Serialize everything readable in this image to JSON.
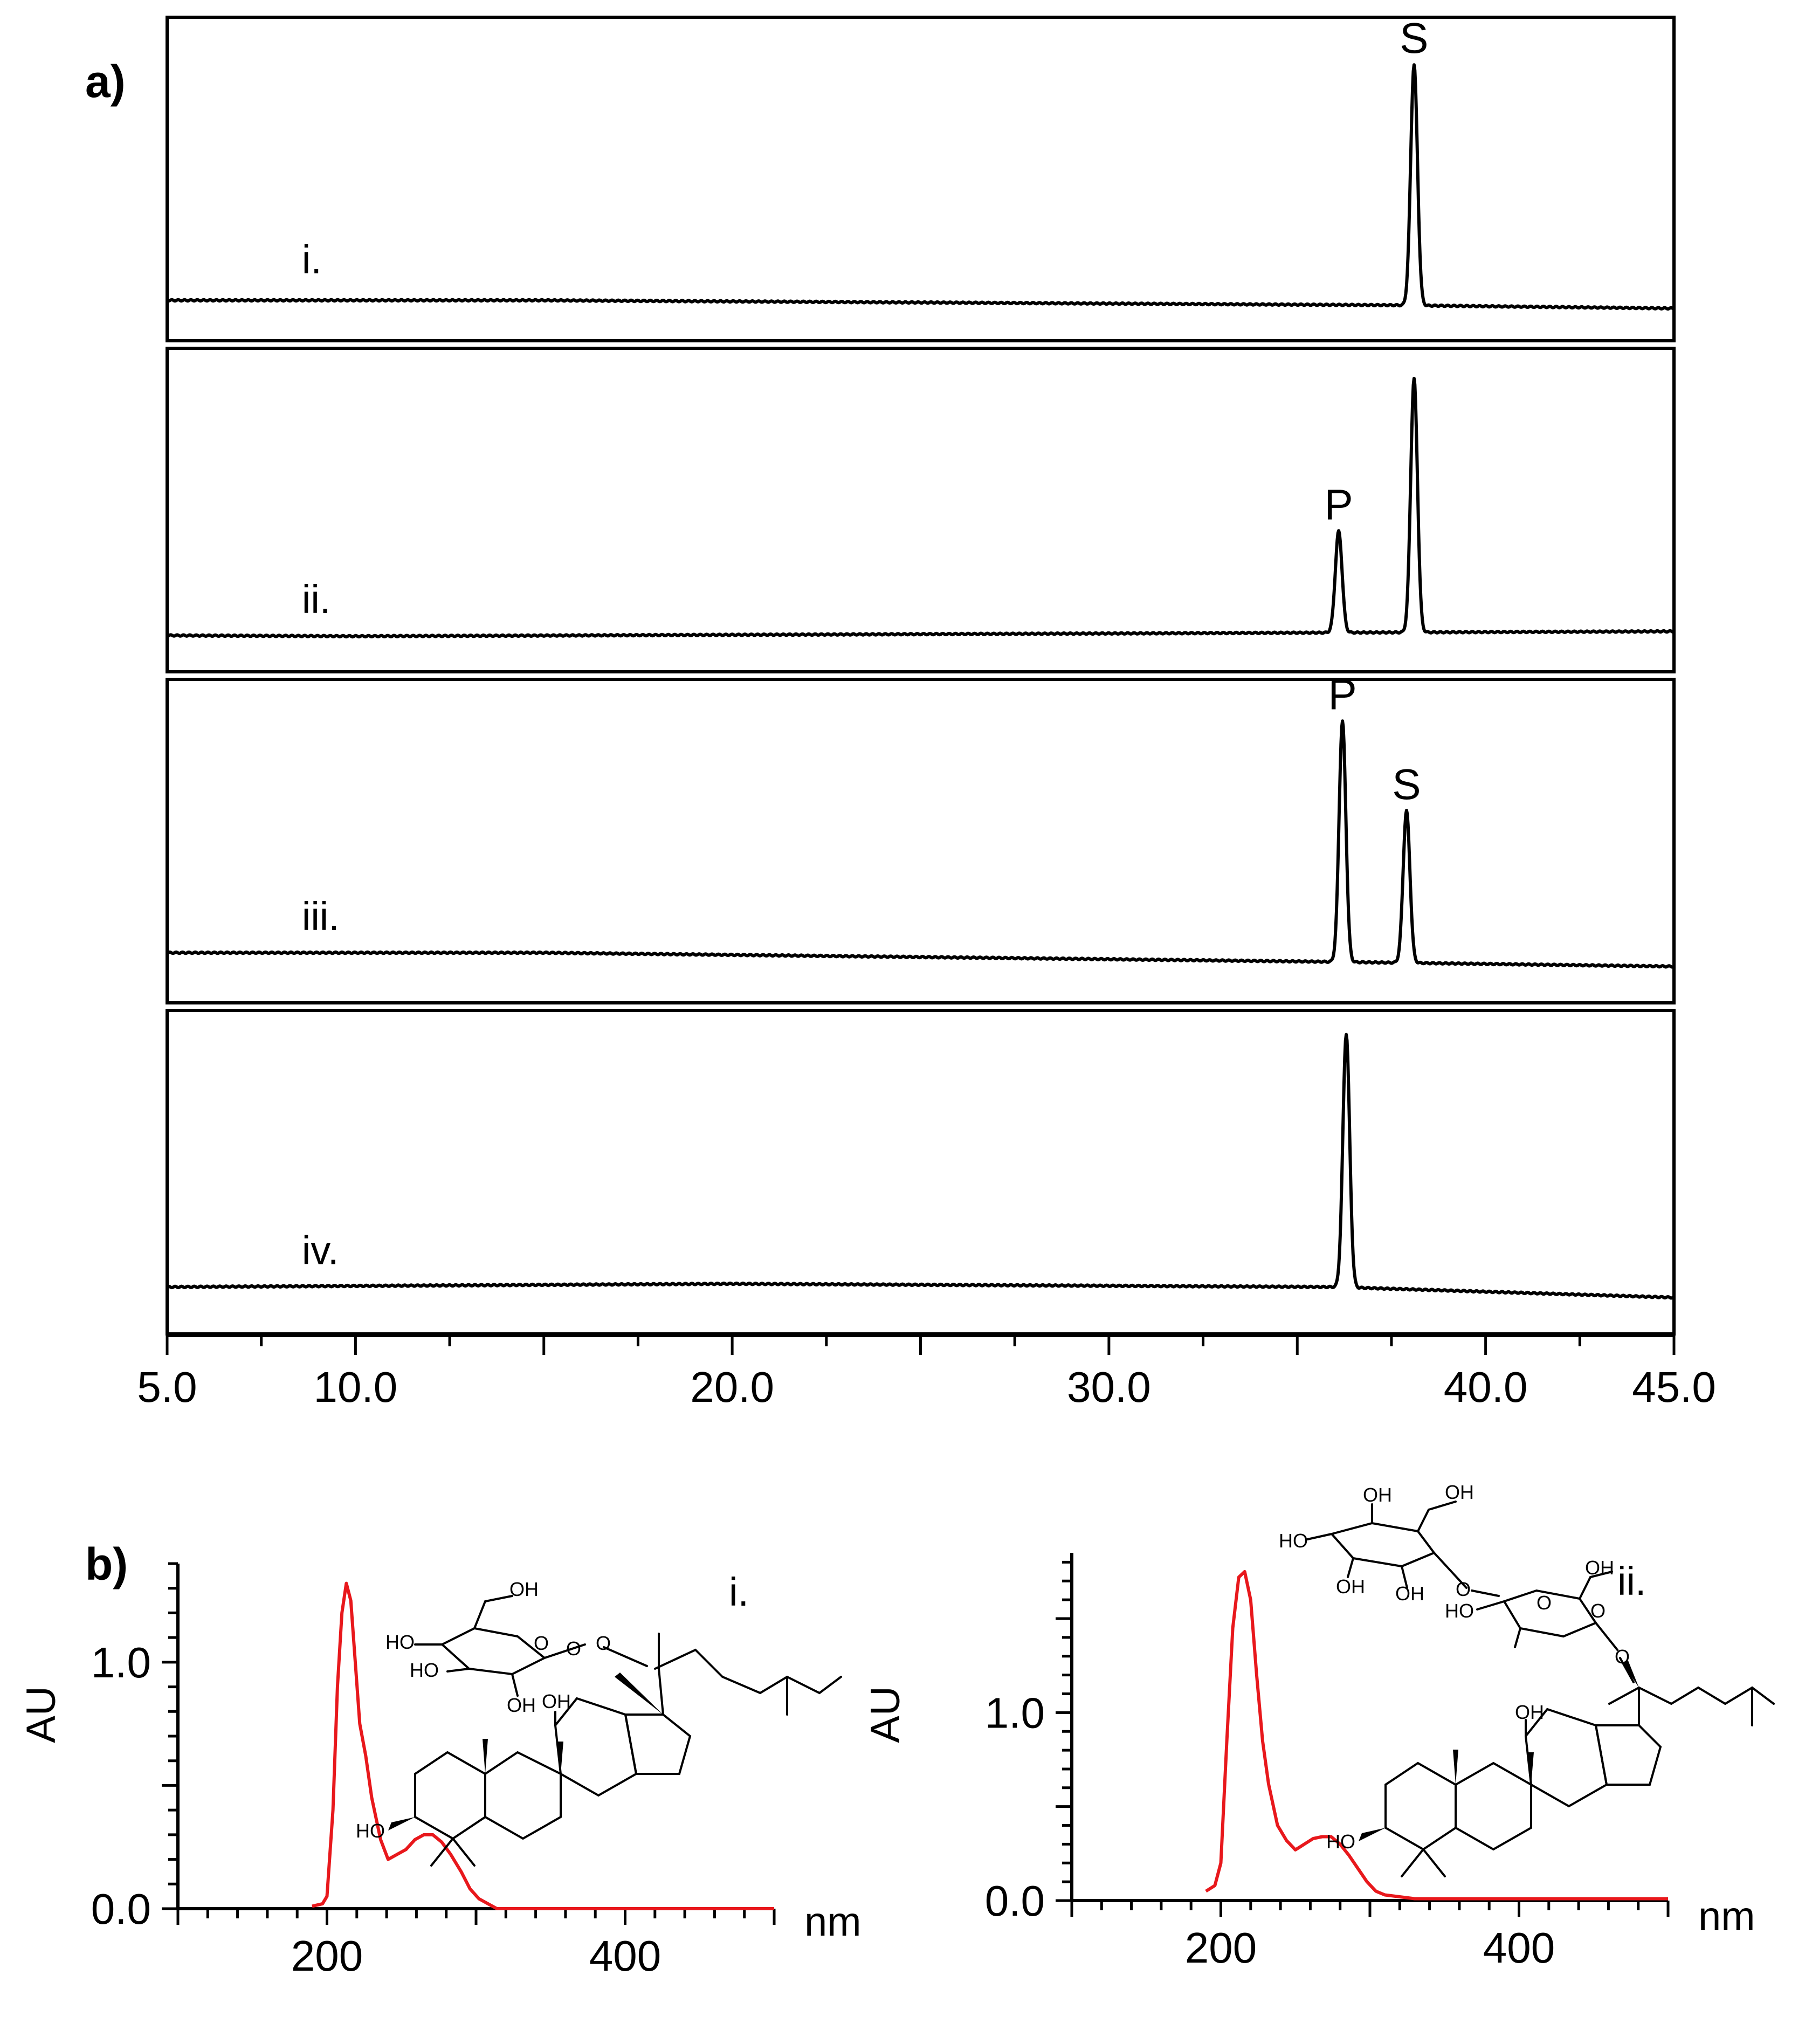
{
  "panel_a": {
    "label": "a)",
    "x_axis": {
      "tick_labels": [
        {
          "value": 5,
          "text": "5.0"
        },
        {
          "value": 10,
          "text": "10.0"
        },
        {
          "value": 20,
          "text": "20.0"
        },
        {
          "value": 30,
          "text": "30.0"
        },
        {
          "value": 40,
          "text": "40.0"
        },
        {
          "value": 45,
          "text": "45.0"
        }
      ]
    }
  },
  "panel_b": {
    "label": "b)",
    "y_label": "AU",
    "x_unit": "nm",
    "spectrum_i": {
      "label": "i.",
      "y_ticks": [
        {
          "value": 0.0,
          "text": "0.0"
        },
        {
          "value": 1.0,
          "text": "1.0"
        }
      ],
      "x_ticks": [
        {
          "value": 200,
          "text": "200"
        },
        {
          "value": 400,
          "text": "400"
        }
      ],
      "structure_labels": [
        "OH",
        "HO",
        "HO",
        "OH",
        "O",
        "O",
        "O",
        "OH",
        "HO"
      ]
    },
    "spectrum_ii": {
      "label": "ii.",
      "y_ticks": [
        {
          "value": 0.0,
          "text": "0.0"
        },
        {
          "value": 1.0,
          "text": "1.0"
        }
      ],
      "x_ticks": [
        {
          "value": 200,
          "text": "200"
        },
        {
          "value": 400,
          "text": "400"
        }
      ],
      "structure_labels": [
        "OH",
        "OH",
        "HO",
        "OH",
        "OH",
        "O",
        "O",
        "OH",
        "HO",
        "O",
        "O",
        "OH",
        "HO"
      ]
    }
  },
  "chart_data": [
    {
      "type": "line",
      "panel": "a",
      "xlim": [
        5.0,
        45.0
      ],
      "xlabel": "",
      "ylabel": "",
      "grid": false,
      "series": [
        {
          "name": "i.",
          "baseline": [
            [
              5,
              0.1
            ],
            [
              15,
              0.1
            ],
            [
              37.5,
              0.04
            ],
            [
              45,
              0.0
            ]
          ],
          "peaks": [
            {
              "x": 38.1,
              "height": 0.95,
              "label": "S"
            }
          ]
        },
        {
          "name": "ii.",
          "baseline": [
            [
              5,
              0.05
            ],
            [
              10,
              0.04
            ],
            [
              45,
              0.1
            ]
          ],
          "peaks": [
            {
              "x": 36.1,
              "height": 0.4,
              "label": "P"
            },
            {
              "x": 38.1,
              "height": 1.0,
              "label": ""
            }
          ]
        },
        {
          "name": "iii.",
          "baseline": [
            [
              5,
              0.22
            ],
            [
              15,
              0.22
            ],
            [
              35.5,
              0.11
            ],
            [
              45,
              0.05
            ]
          ],
          "peaks": [
            {
              "x": 36.2,
              "height": 0.95,
              "label": "P"
            },
            {
              "x": 37.9,
              "height": 0.6,
              "label": "S"
            }
          ]
        },
        {
          "name": "iv.",
          "baseline": [
            [
              5,
              0.18
            ],
            [
              20,
              0.22
            ],
            [
              36,
              0.18
            ],
            [
              45,
              0.05
            ]
          ],
          "peaks": [
            {
              "x": 36.3,
              "height": 1.0,
              "label": ""
            }
          ]
        }
      ]
    },
    {
      "type": "line",
      "panel": "b-i",
      "xlim": [
        100,
        500
      ],
      "ylim": [
        0.0,
        1.4
      ],
      "xlabel": "nm",
      "ylabel": "AU",
      "series": [
        {
          "name": "i.",
          "x": [
            190,
            197,
            200,
            204,
            207,
            210,
            213,
            216,
            219,
            222,
            226,
            230,
            236,
            241,
            247,
            253,
            259,
            265,
            271,
            277,
            283,
            290,
            296,
            302,
            308,
            314,
            330,
            400,
            500
          ],
          "y": [
            0.01,
            0.02,
            0.05,
            0.4,
            0.9,
            1.2,
            1.32,
            1.25,
            1.0,
            0.75,
            0.62,
            0.45,
            0.28,
            0.2,
            0.22,
            0.24,
            0.28,
            0.3,
            0.3,
            0.27,
            0.22,
            0.15,
            0.08,
            0.04,
            0.02,
            0.0,
            0.0,
            0.0,
            0.0
          ]
        }
      ]
    },
    {
      "type": "line",
      "panel": "b-ii",
      "xlim": [
        100,
        500
      ],
      "ylim": [
        0.0,
        1.85
      ],
      "xlabel": "nm",
      "ylabel": "AU",
      "series": [
        {
          "name": "ii.",
          "x": [
            190,
            196,
            200,
            204,
            208,
            212,
            216,
            220,
            224,
            228,
            232,
            238,
            244,
            250,
            256,
            262,
            268,
            274,
            280,
            286,
            292,
            298,
            304,
            310,
            330,
            400,
            500
          ],
          "y": [
            0.05,
            0.08,
            0.2,
            0.85,
            1.45,
            1.72,
            1.75,
            1.6,
            1.2,
            0.85,
            0.62,
            0.4,
            0.32,
            0.27,
            0.3,
            0.33,
            0.34,
            0.34,
            0.3,
            0.24,
            0.17,
            0.1,
            0.05,
            0.03,
            0.01,
            0.01,
            0.01
          ]
        }
      ]
    }
  ]
}
